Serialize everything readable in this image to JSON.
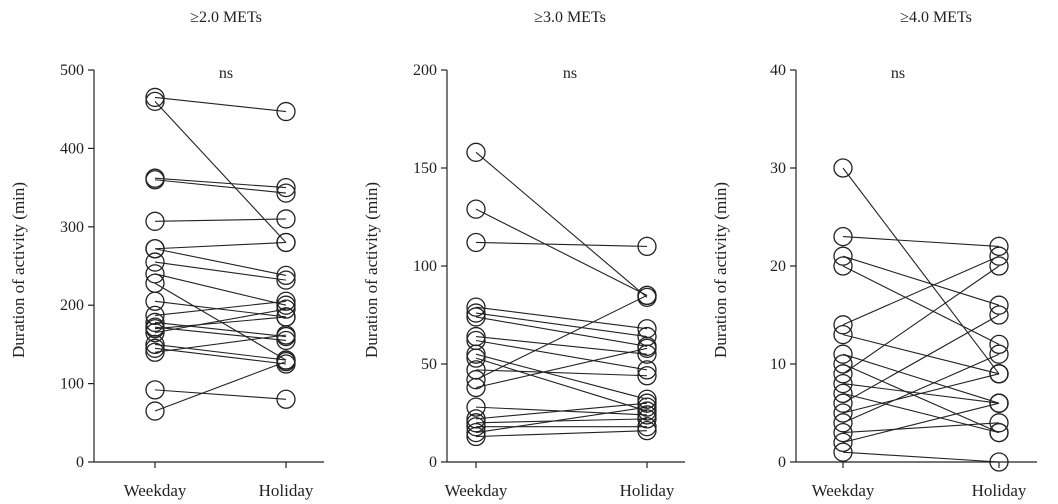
{
  "chart_data": [
    {
      "type": "scatter",
      "title": "≥2.0 METs",
      "ylabel": "Duration of activity (min)",
      "categories": [
        "Weekday",
        "Holiday"
      ],
      "annotation": "ns",
      "ylim": [
        0,
        500
      ],
      "yticks": [
        "0",
        "100",
        "200",
        "300",
        "400",
        "500"
      ],
      "pairs": [
        [
          465,
          447
        ],
        [
          460,
          280
        ],
        [
          362,
          350
        ],
        [
          360,
          343
        ],
        [
          307,
          310
        ],
        [
          272,
          280
        ],
        [
          272,
          238
        ],
        [
          255,
          232
        ],
        [
          240,
          200
        ],
        [
          228,
          130
        ],
        [
          205,
          185
        ],
        [
          187,
          205
        ],
        [
          178,
          160
        ],
        [
          172,
          155
        ],
        [
          170,
          185
        ],
        [
          165,
          195
        ],
        [
          150,
          130
        ],
        [
          145,
          125
        ],
        [
          140,
          162
        ],
        [
          92,
          80
        ],
        [
          65,
          128
        ]
      ]
    },
    {
      "type": "scatter",
      "title": "≥3.0 METs",
      "ylabel": "Duration of activity (min)",
      "categories": [
        "Weekday",
        "Holiday"
      ],
      "annotation": "ns",
      "ylim": [
        0,
        200
      ],
      "yticks": [
        "0",
        "50",
        "100",
        "150",
        "200"
      ],
      "pairs": [
        [
          158,
          84
        ],
        [
          129,
          85
        ],
        [
          112,
          110
        ],
        [
          79,
          68
        ],
        [
          76,
          64
        ],
        [
          74,
          59
        ],
        [
          64,
          55
        ],
        [
          62,
          47
        ],
        [
          55,
          32
        ],
        [
          53,
          26
        ],
        [
          47,
          44
        ],
        [
          42,
          85
        ],
        [
          38,
          58
        ],
        [
          28,
          24
        ],
        [
          22,
          30
        ],
        [
          20,
          22
        ],
        [
          18,
          18
        ],
        [
          15,
          28
        ],
        [
          13,
          16
        ]
      ]
    },
    {
      "type": "scatter",
      "title": "≥4.0 METs",
      "ylabel": "Duration of activity (min)",
      "categories": [
        "Weekday",
        "Holiday"
      ],
      "annotation": "ns",
      "ylim": [
        0,
        40
      ],
      "yticks": [
        "0",
        "10",
        "20",
        "30",
        "40"
      ],
      "pairs": [
        [
          30,
          9
        ],
        [
          23,
          22
        ],
        [
          21,
          16
        ],
        [
          20,
          12
        ],
        [
          14,
          21
        ],
        [
          13,
          9
        ],
        [
          11,
          6
        ],
        [
          10,
          3
        ],
        [
          9,
          20
        ],
        [
          8,
          6
        ],
        [
          7,
          3
        ],
        [
          6,
          15
        ],
        [
          5,
          9
        ],
        [
          4,
          11
        ],
        [
          3,
          4
        ],
        [
          2,
          6
        ],
        [
          1,
          0
        ]
      ]
    }
  ]
}
